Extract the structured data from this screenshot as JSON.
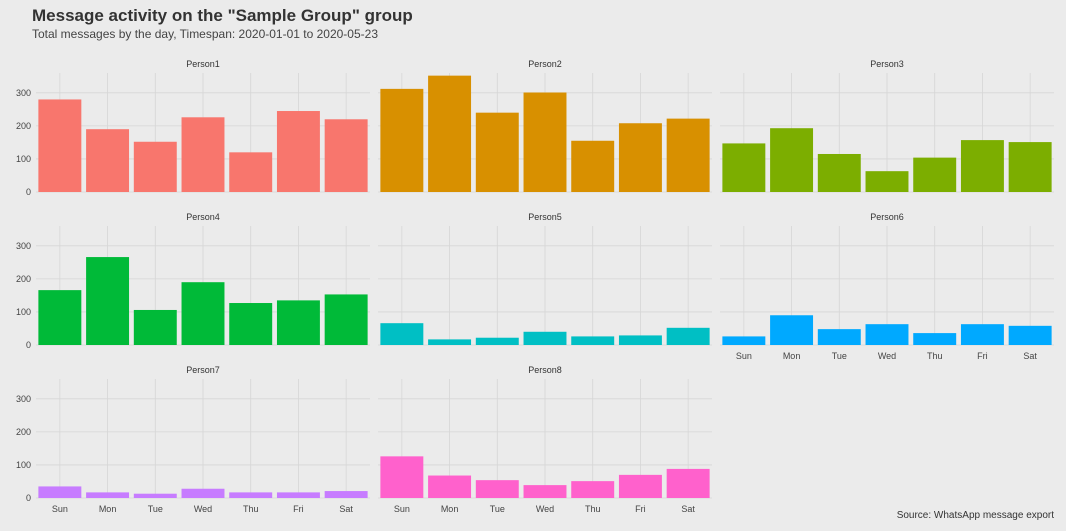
{
  "chart_data": {
    "type": "bar",
    "title": "Message activity on the \"Sample Group\" group",
    "subtitle": "Total messages by the day, Timespan: 2020-01-01 to 2020-05-23",
    "caption": "Source: WhatsApp message export",
    "categories": [
      "Sun",
      "Mon",
      "Tue",
      "Wed",
      "Thu",
      "Fri",
      "Sat"
    ],
    "y_ticks": [
      0,
      100,
      200,
      300
    ],
    "ylim": [
      0,
      360
    ],
    "facet_layout": "3 rows x 3 columns, shared y axis",
    "grid": true,
    "legend": "none",
    "series": [
      {
        "name": "Person1",
        "color": "#F8766D",
        "values": [
          280,
          190,
          152,
          226,
          120,
          245,
          220
        ]
      },
      {
        "name": "Person2",
        "color": "#D89000",
        "values": [
          312,
          352,
          240,
          301,
          155,
          208,
          222
        ]
      },
      {
        "name": "Person3",
        "color": "#7CAE00",
        "values": [
          147,
          193,
          115,
          63,
          104,
          157,
          151
        ]
      },
      {
        "name": "Person4",
        "color": "#00BA38",
        "values": [
          166,
          266,
          106,
          190,
          127,
          135,
          153
        ]
      },
      {
        "name": "Person5",
        "color": "#00BFC4",
        "values": [
          66,
          17,
          22,
          40,
          26,
          29,
          52
        ]
      },
      {
        "name": "Person6",
        "color": "#00A9FF",
        "values": [
          26,
          90,
          48,
          63,
          36,
          63,
          58
        ]
      },
      {
        "name": "Person7",
        "color": "#C77CFF",
        "values": [
          35,
          17,
          13,
          28,
          17,
          17,
          21
        ]
      },
      {
        "name": "Person8",
        "color": "#FF61CC",
        "values": [
          126,
          68,
          54,
          39,
          51,
          70,
          88
        ]
      }
    ]
  }
}
